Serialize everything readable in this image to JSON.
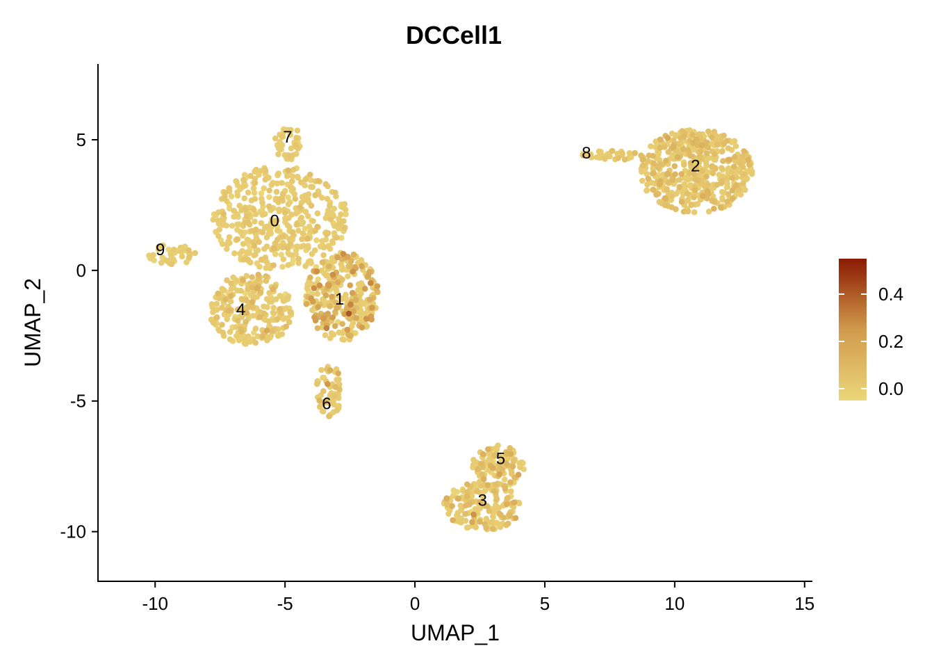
{
  "chart_data": {
    "type": "scatter",
    "title": "DCCell1",
    "xlabel": "UMAP_1",
    "ylabel": "UMAP_2",
    "xlim": [
      -12.2,
      15.3
    ],
    "ylim": [
      -11.9,
      7.9
    ],
    "xticks": [
      -10,
      -5,
      0,
      5,
      10,
      15
    ],
    "yticks": [
      -10,
      -5,
      0,
      5
    ],
    "xtick_labels": [
      "-10",
      "-5",
      "0",
      "5",
      "10",
      "15"
    ],
    "ytick_labels": [
      "-10",
      "-5",
      "0",
      "5"
    ],
    "grid": false,
    "color_scale": {
      "low": "#ecd67a",
      "mid": "#d19a4c",
      "high": "#8b1a02",
      "range": [
        -0.05,
        0.55
      ],
      "ticks": [
        0.0,
        0.2,
        0.4
      ],
      "tick_labels": [
        "0.0",
        "0.2",
        "0.4"
      ],
      "position": "right"
    },
    "clusters": [
      {
        "label": "0",
        "x": -5.4,
        "y": 1.9
      },
      {
        "label": "1",
        "x": -2.9,
        "y": -1.1
      },
      {
        "label": "2",
        "x": 10.8,
        "y": 4.0
      },
      {
        "label": "3",
        "x": 2.6,
        "y": -8.8
      },
      {
        "label": "4",
        "x": -6.7,
        "y": -1.5
      },
      {
        "label": "5",
        "x": 3.3,
        "y": -7.2
      },
      {
        "label": "6",
        "x": -3.4,
        "y": -5.1
      },
      {
        "label": "7",
        "x": -4.9,
        "y": 5.1
      },
      {
        "label": "8",
        "x": 6.6,
        "y": 4.5
      },
      {
        "label": "9",
        "x": -9.8,
        "y": 0.8
      }
    ],
    "point_regions": [
      {
        "cluster": "0",
        "cx": -5.2,
        "cy": 2.0,
        "rx": 2.6,
        "ry": 2.0,
        "n": 420,
        "expr_mean": 0.01,
        "expr_spread": 0.03
      },
      {
        "cluster": "1",
        "cx": -2.8,
        "cy": -1.0,
        "rx": 1.4,
        "ry": 1.7,
        "n": 300,
        "expr_mean": 0.12,
        "expr_spread": 0.09
      },
      {
        "cluster": "4",
        "cx": -6.3,
        "cy": -1.5,
        "rx": 1.6,
        "ry": 1.4,
        "n": 240,
        "expr_mean": 0.03,
        "expr_spread": 0.05
      },
      {
        "cluster": "7",
        "cx": -4.9,
        "cy": 4.9,
        "rx": 0.5,
        "ry": 0.7,
        "n": 40,
        "expr_mean": 0.0,
        "expr_spread": 0.02
      },
      {
        "cluster": "9",
        "cx": -9.4,
        "cy": 0.6,
        "rx": 1.0,
        "ry": 0.4,
        "n": 40,
        "expr_mean": 0.0,
        "expr_spread": 0.02
      },
      {
        "cluster": "6",
        "cx": -3.3,
        "cy": -4.6,
        "rx": 0.5,
        "ry": 1.0,
        "n": 55,
        "expr_mean": 0.05,
        "expr_spread": 0.06
      },
      {
        "cluster": "2",
        "cx": 10.8,
        "cy": 3.8,
        "rx": 2.2,
        "ry": 1.6,
        "n": 480,
        "expr_mean": 0.05,
        "expr_spread": 0.04
      },
      {
        "cluster": "8",
        "cx": 7.7,
        "cy": 4.4,
        "rx": 1.3,
        "ry": 0.18,
        "n": 35,
        "expr_mean": 0.03,
        "expr_spread": 0.03
      },
      {
        "cluster": "5",
        "cx": 3.2,
        "cy": -7.5,
        "rx": 1.0,
        "ry": 0.8,
        "n": 120,
        "expr_mean": 0.06,
        "expr_spread": 0.08
      },
      {
        "cluster": "3",
        "cx": 2.6,
        "cy": -9.0,
        "rx": 1.5,
        "ry": 0.95,
        "n": 170,
        "expr_mean": 0.05,
        "expr_spread": 0.06
      }
    ]
  }
}
